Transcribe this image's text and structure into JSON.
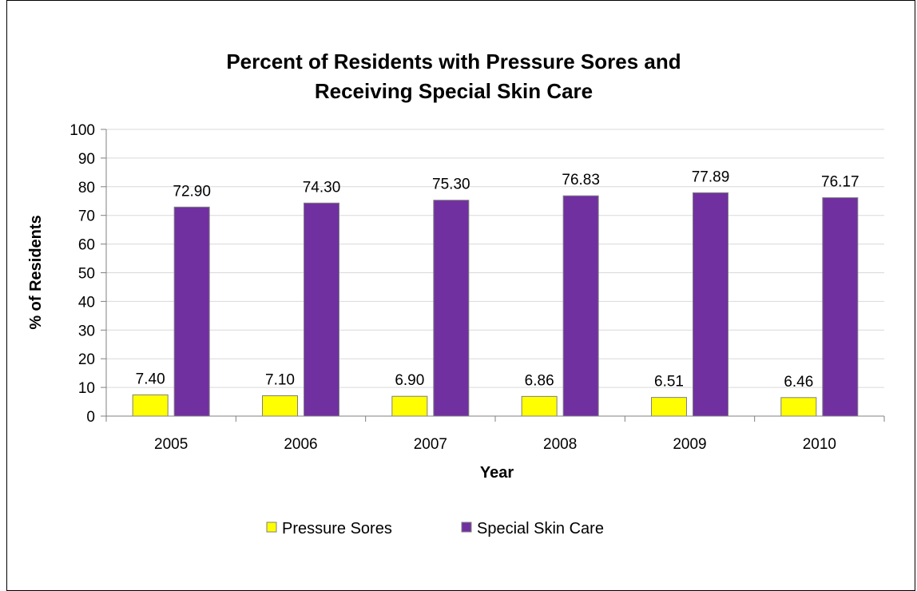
{
  "chart_data": {
    "type": "bar",
    "title_lines": [
      "Percent of Residents with Pressure Sores and",
      "Receiving Special Skin Care"
    ],
    "xlabel": "Year",
    "ylabel": "% of Residents",
    "categories": [
      "2005",
      "2006",
      "2007",
      "2008",
      "2009",
      "2010"
    ],
    "ylim": [
      0,
      100
    ],
    "yticks": [
      "0",
      "10",
      "20",
      "30",
      "40",
      "50",
      "60",
      "70",
      "80",
      "90",
      "100"
    ],
    "grid": true,
    "legend_position": "bottom",
    "series": [
      {
        "name": "Pressure Sores",
        "color": "#ffff00",
        "values": [
          7.4,
          7.1,
          6.9,
          6.86,
          6.51,
          6.46
        ],
        "labels": [
          "7.40",
          "7.10",
          "6.90",
          "6.86",
          "6.51",
          "6.46"
        ]
      },
      {
        "name": "Special Skin Care",
        "color": "#7030a0",
        "values": [
          72.9,
          74.3,
          75.3,
          76.83,
          77.89,
          76.17
        ],
        "labels": [
          "72.90",
          "74.30",
          "75.30",
          "76.83",
          "77.89",
          "76.17"
        ]
      }
    ]
  }
}
